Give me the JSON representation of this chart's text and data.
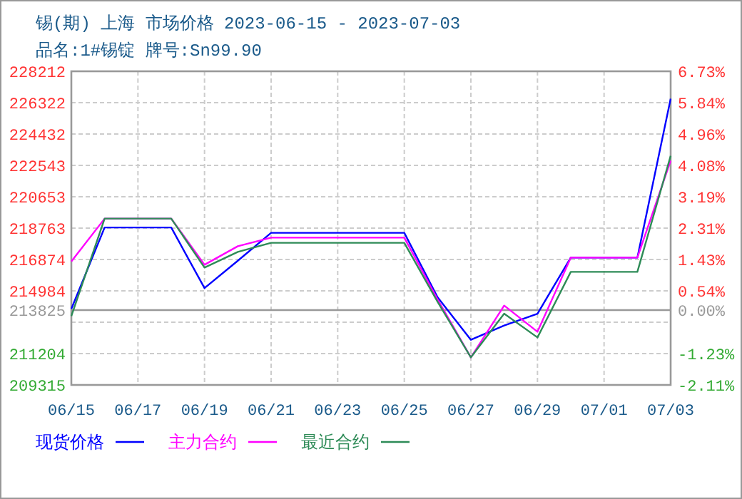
{
  "chart_data": {
    "type": "line",
    "title": "锡(期) 上海 市场价格 2023-06-15 - 2023-07-03",
    "subtitle": "品名:1#锡锭 牌号:Sn99.90",
    "x": [
      "2023-06-15",
      "2023-06-16",
      "2023-06-18",
      "2023-06-19",
      "2023-06-20",
      "2023-06-21",
      "2023-06-25",
      "2023-06-26",
      "2023-06-27",
      "2023-06-28",
      "2023-06-29",
      "2023-06-30",
      "2023-07-02",
      "2023-07-03"
    ],
    "series": [
      {
        "name": "现货价格",
        "color": "#0000ff",
        "values": [
          213900,
          218800,
          218800,
          215150,
          216800,
          218480,
          218480,
          214600,
          212035,
          212894,
          213609,
          216985,
          216985,
          226554
        ]
      },
      {
        "name": "主力合约",
        "color": "#ff00ff",
        "values": [
          216760,
          219338,
          219338,
          216558,
          217674,
          218191,
          218191,
          214468,
          210975,
          214096,
          212521,
          216985,
          216985,
          222829
        ]
      },
      {
        "name": "最近合约",
        "color": "#2e8b57",
        "values": [
          213465,
          219338,
          219338,
          216386,
          217332,
          217876,
          217876,
          214325,
          210975,
          213609,
          212177,
          216127,
          216127,
          223116
        ]
      }
    ],
    "xlim": [
      "2023-06-15",
      "2023-07-03"
    ],
    "xticks": [
      {
        "value": "2023-06-15",
        "label": "06/15"
      },
      {
        "value": "2023-06-17",
        "label": "06/17"
      },
      {
        "value": "2023-06-19",
        "label": "06/19"
      },
      {
        "value": "2023-06-21",
        "label": "06/21"
      },
      {
        "value": "2023-06-23",
        "label": "06/23"
      },
      {
        "value": "2023-06-25",
        "label": "06/25"
      },
      {
        "value": "2023-06-27",
        "label": "06/27"
      },
      {
        "value": "2023-06-29",
        "label": "06/29"
      },
      {
        "value": "2023-07-01",
        "label": "07/01"
      },
      {
        "value": "2023-07-03",
        "label": "07/03"
      }
    ],
    "ylim": [
      209315,
      228212
    ],
    "yticks": [
      209315,
      211204,
      {
        "value": 213094,
        "label": null
      },
      213825,
      214984,
      216874,
      218763,
      220653,
      222543,
      224432,
      226322,
      228212
    ],
    "y2lim": [
      -2.11,
      6.73
    ],
    "y2ticks": [
      {
        "value": -2.11,
        "label": "-2.11%"
      },
      {
        "value": -1.23,
        "label": "-1.23%"
      },
      {
        "value": -0.34,
        "label": null
      },
      {
        "value": 0,
        "label": "0.00%"
      },
      {
        "value": 0.54,
        "label": "0.54%"
      },
      {
        "value": 1.43,
        "label": "1.43%"
      },
      {
        "value": 2.31,
        "label": "2.31%"
      },
      {
        "value": 3.19,
        "label": "3.19%"
      },
      {
        "value": 4.08,
        "label": "4.08%"
      },
      {
        "value": 4.96,
        "label": "4.96%"
      },
      {
        "value": 5.84,
        "label": "5.84%"
      },
      {
        "value": 6.73,
        "label": "6.73%"
      }
    ],
    "ref_lines": [
      {
        "axis": "y",
        "value": 213825,
        "color": "#999999"
      }
    ],
    "grid": true,
    "legend": "bottom"
  }
}
